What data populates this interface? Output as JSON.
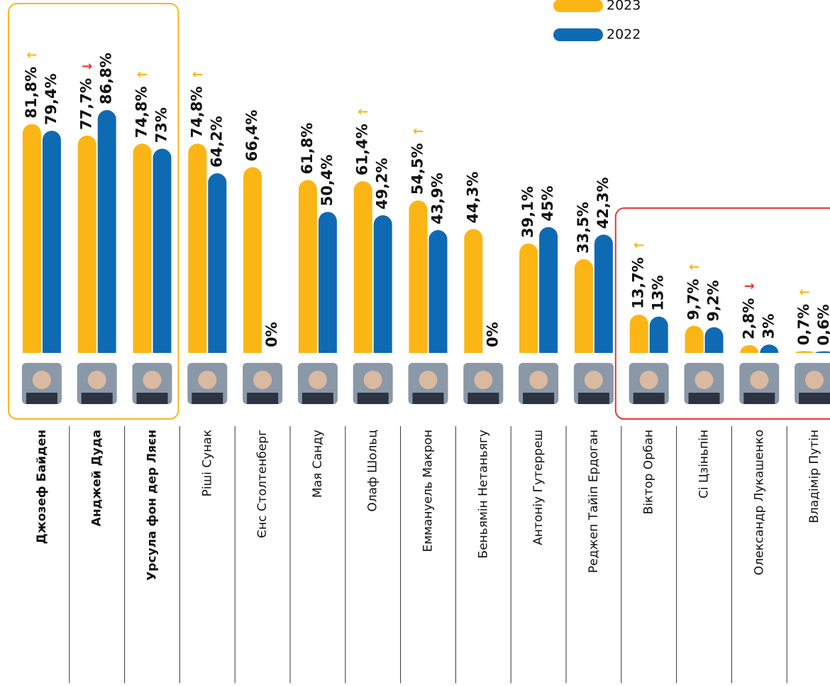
{
  "chart_data": {
    "type": "bar",
    "categories": [
      "Джозеф Байден",
      "Анджей Дуда",
      "Урсула фон дер Ляєн",
      "Ріші Сунак",
      "Єнс Столтенберг",
      "Мая Санду",
      "Олаф Шольц",
      "Еммануель Макрон",
      "Беньямін Нетаньягу",
      "Антоніу Гутерреш",
      "Реджеп Тайіп Ердоган",
      "Віктор Орбан",
      "Сі Цзіньпін",
      "Олександр Лукашенко",
      "Владімір Путін"
    ],
    "series": [
      {
        "name": "2023",
        "color": "#fbb615",
        "values": [
          81.8,
          77.7,
          74.8,
          74.8,
          66.4,
          61.8,
          61.4,
          54.5,
          44.3,
          39.1,
          33.5,
          13.7,
          9.7,
          2.8,
          0.7
        ],
        "value_labels": [
          "81,8%",
          "77,7%",
          "74,8%",
          "74,8%",
          "66,4%",
          "61,8%",
          "61,4%",
          "54,5%",
          "44,3%",
          "39,1%",
          "33,5%",
          "13,7%",
          "9,7%",
          "2,8%",
          "0,7%"
        ]
      },
      {
        "name": "2022",
        "color": "#0f6ab4",
        "values": [
          79.4,
          86.8,
          73,
          64.2,
          0,
          50.4,
          49.2,
          43.9,
          0,
          45,
          42.3,
          13,
          9.2,
          3,
          0.6
        ],
        "value_labels": [
          "79,4%",
          "86,8%",
          "73%",
          "64,2%",
          "0%",
          "50,4%",
          "49,2%",
          "43,9%",
          "0%",
          "45%",
          "42,3%",
          "13%",
          "9,2%",
          "3%",
          "0,6%"
        ]
      }
    ],
    "trend": [
      "←",
      "→",
      "←",
      "←",
      null,
      null,
      "←",
      "←",
      null,
      null,
      null,
      "←",
      "←",
      "→",
      "←"
    ],
    "trend_colors": {
      "←": "#fbb615",
      "→": "#e53935"
    },
    "groups": [
      {
        "indices": [
          0,
          1,
          2
        ],
        "color": "#fbb615"
      },
      {
        "indices": [
          11,
          12,
          13,
          14
        ],
        "color": "#e53935"
      }
    ],
    "ylim": [
      0,
      100
    ]
  }
}
